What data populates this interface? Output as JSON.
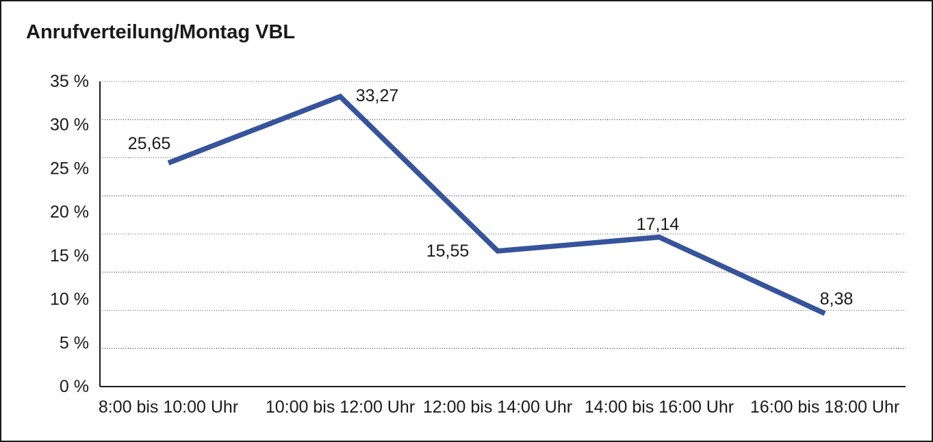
{
  "title": "Anrufverteilung/Montag VBL",
  "chart_data": {
    "type": "line",
    "title": "Anrufverteilung/Montag VBL",
    "categories": [
      "8:00 bis 10:00 Uhr",
      "10:00 bis 12:00 Uhr",
      "12:00 bis 14:00 Uhr",
      "14:00 bis 16:00 Uhr",
      "16:00 bis 18:00 Uhr"
    ],
    "series": [
      {
        "values": [
          25.65,
          33.27,
          15.55,
          17.14,
          8.38
        ]
      }
    ],
    "data_labels": [
      "25,65",
      "33,27",
      "15,55",
      "17,14",
      "8,38"
    ],
    "xlabel": "",
    "ylabel": "",
    "ylim": [
      0,
      35
    ],
    "y_tick_step": 5,
    "y_tick_labels": [
      "35 %",
      "30 %",
      "25 %",
      "20 %",
      "15 %",
      "10 %",
      "5 %",
      "0 %"
    ],
    "grid": "horizontal-dotted",
    "grid_bands": 8,
    "legend_position": "none",
    "line_color": "#36549C",
    "axis_color": "#1a1a1a",
    "gridline_color": "#4d4d4d",
    "background": "#ffffff"
  }
}
